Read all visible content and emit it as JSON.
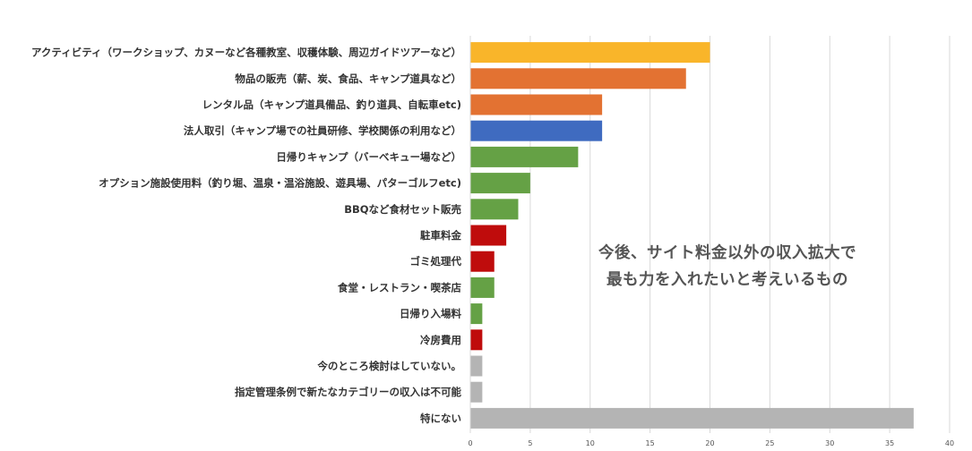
{
  "chart_data": {
    "type": "bar",
    "orientation": "horizontal",
    "title": "",
    "xlabel": "",
    "ylabel": "",
    "categories": [
      "アクティビティ（ワークショップ、カヌーなど各種教室、収穫体験、周辺ガイドツアーなど）",
      "物品の販売（薪、炭、食品、キャンプ道具など）",
      "レンタル品（キャンプ道具備品、釣り道具、自転車etc)",
      "法人取引（キャンプ場での社員研修、学校関係の利用など）",
      "日帰りキャンプ（バーベキュー場など）",
      "オプション施設使用料（釣り堀、温泉・温浴施設、遊具場、パターゴルフetc)",
      "BBQなど食材セット販売",
      "駐車料金",
      "ゴミ処理代",
      "食堂・レストラン・喫茶店",
      "日帰り入場料",
      "冷房費用",
      "今のところ検討はしていない。",
      "指定管理条例で新たなカテゴリーの収入は不可能",
      "特にない"
    ],
    "values": [
      20,
      18,
      11,
      11,
      9,
      5,
      4,
      3,
      2,
      2,
      1,
      1,
      1,
      1,
      37
    ],
    "colors": [
      "#F9B52A",
      "#E37232",
      "#E37232",
      "#3F6BC0",
      "#65A145",
      "#65A145",
      "#65A145",
      "#BF0C0C",
      "#BF0C0C",
      "#65A145",
      "#65A145",
      "#BF0C0C",
      "#B4B4B4",
      "#B4B4B4",
      "#B4B4B4"
    ],
    "xlim": [
      0,
      40
    ],
    "xticks": [
      0,
      5,
      10,
      15,
      20,
      25,
      30,
      35,
      40
    ],
    "grid": "vertical",
    "gridline_color": "#D9D9D9",
    "legend": "none",
    "annotation_lines": [
      "今後、サイト料金以外の収入拡大で",
      "最も力を入れたいと考えいるもの"
    ]
  }
}
